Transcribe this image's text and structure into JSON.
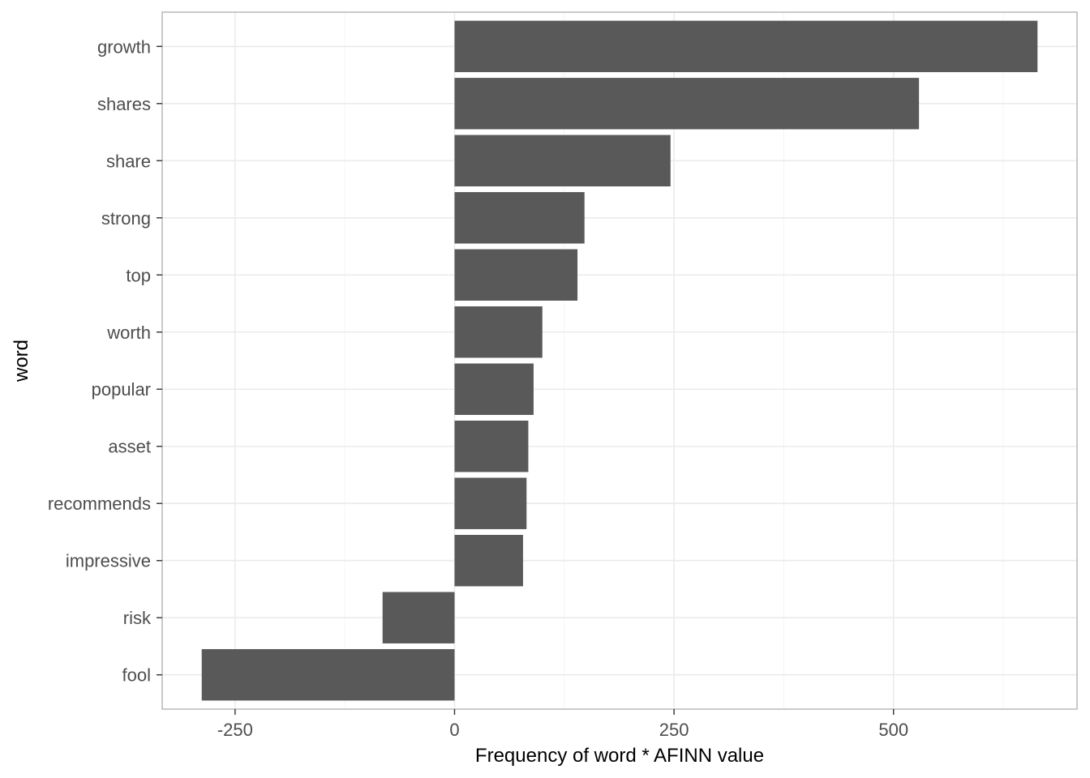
{
  "chart_data": {
    "type": "bar",
    "orientation": "horizontal",
    "categories": [
      "growth",
      "shares",
      "share",
      "strong",
      "top",
      "worth",
      "popular",
      "asset",
      "recommends",
      "impressive",
      "risk",
      "fool"
    ],
    "values": [
      664,
      529,
      246,
      148,
      140,
      100,
      90,
      84,
      82,
      78,
      -82,
      -288
    ],
    "xlabel": "Frequency of word * AFINN value",
    "ylabel": "word",
    "x_ticks": [
      -250,
      0,
      250,
      500
    ],
    "x_tick_labels": [
      "-250",
      "0",
      "250",
      "500"
    ],
    "xlim": [
      -333,
      709
    ],
    "grid": true,
    "legend": "none",
    "bar_color": "#595959"
  }
}
